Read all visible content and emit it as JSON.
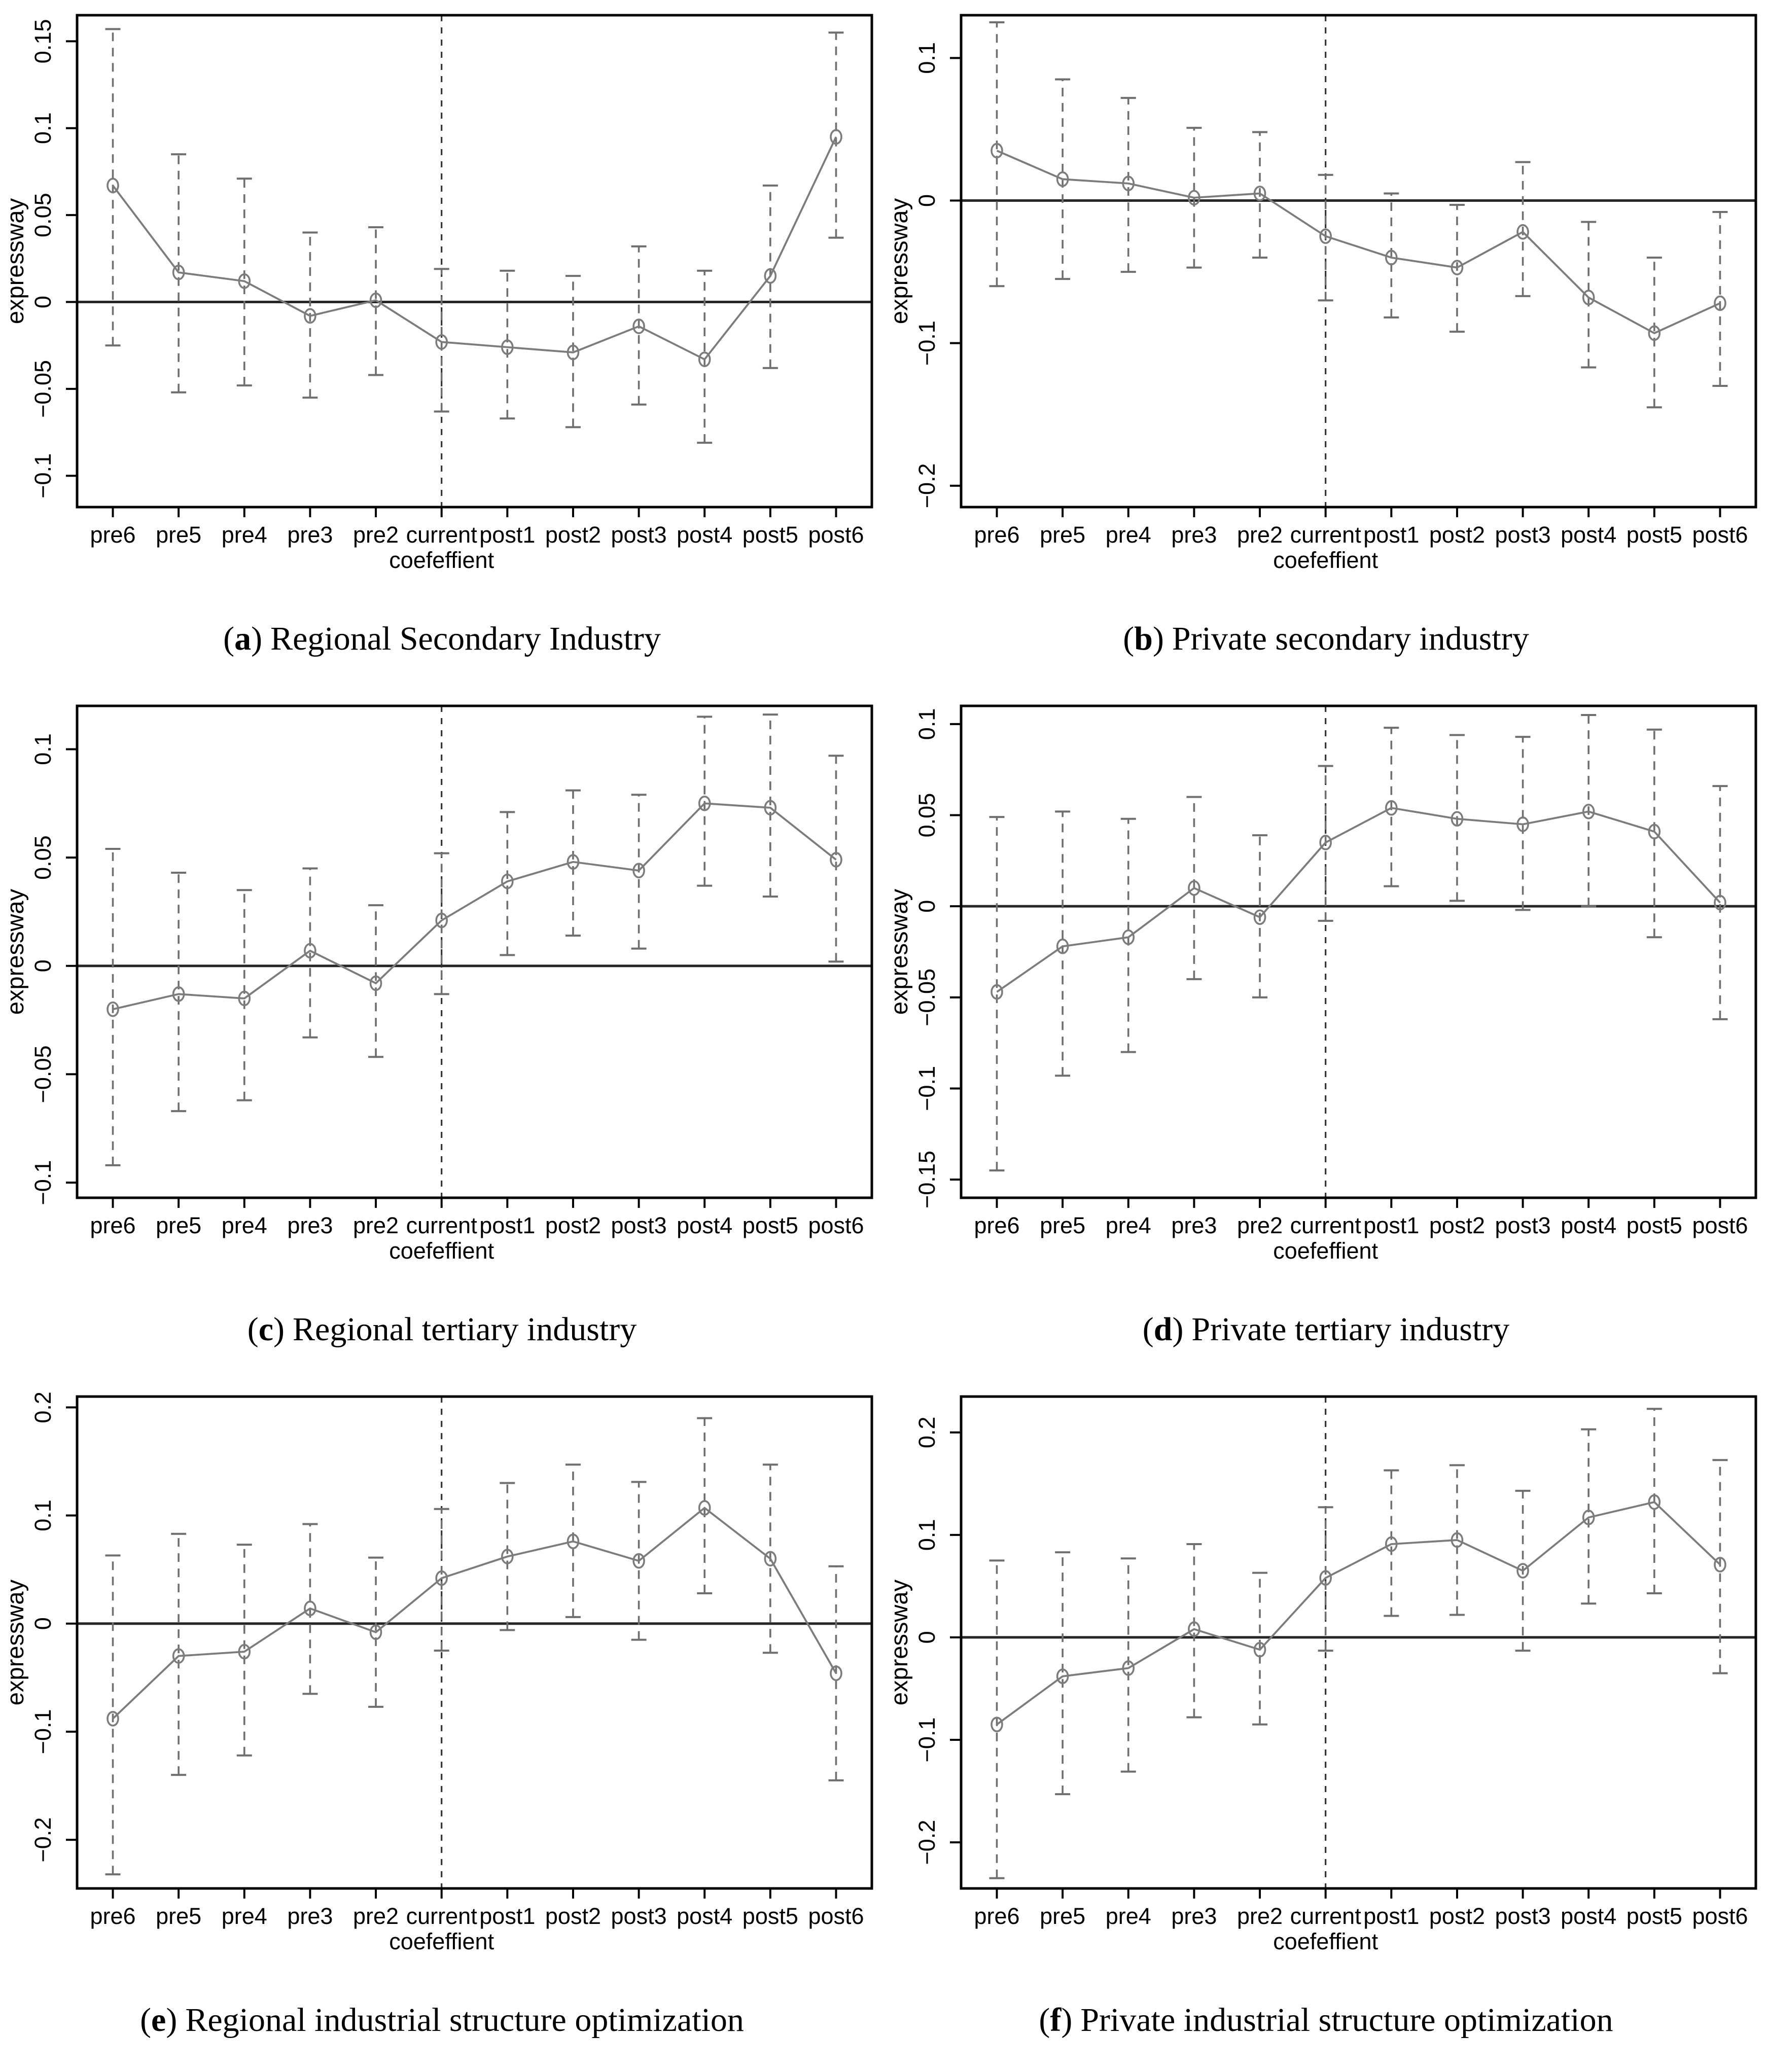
{
  "figure": {
    "description_labels": {
      "ylabel": "expressway",
      "xlabel": "coefeffient",
      "current_category": "current"
    }
  },
  "colors": {
    "series": "#7c7c7c",
    "error_bar": "#6f6f6f",
    "axis": "#000000",
    "zero_line": "#262626",
    "vline": "#333333",
    "background": "#ffffff"
  },
  "chart_data": [
    {
      "id": "a",
      "type": "line",
      "caption": {
        "open": "(",
        "letter": "a",
        "close": ")",
        "text": "Regional Secondary Industry"
      },
      "xlabel": "coefeffient",
      "ylabel": "expressway",
      "categories": [
        "pre6",
        "pre5",
        "pre4",
        "pre3",
        "pre2",
        "current",
        "post1",
        "post2",
        "post3",
        "post4",
        "post5",
        "post6"
      ],
      "vline_index": 5,
      "zero_line": true,
      "grid": false,
      "legend": null,
      "ylim": [
        -0.118,
        0.165
      ],
      "ytick_values": [
        -0.1,
        -0.05,
        0,
        0.05,
        0.1,
        0.15
      ],
      "ytick_labels": [
        "−0.1",
        "−0.05",
        "0",
        "0.05",
        "0.1",
        "0.15"
      ],
      "series": [
        {
          "name": "coefficient",
          "values": [
            0.067,
            0.017,
            0.012,
            -0.008,
            0.001,
            -0.023,
            -0.026,
            -0.029,
            -0.014,
            -0.033,
            0.015,
            0.095
          ]
        },
        {
          "name": "ci_lower",
          "values": [
            -0.025,
            -0.052,
            -0.048,
            -0.055,
            -0.042,
            -0.063,
            -0.067,
            -0.072,
            -0.059,
            -0.081,
            -0.038,
            0.037
          ]
        },
        {
          "name": "ci_upper",
          "values": [
            0.157,
            0.085,
            0.071,
            0.04,
            0.043,
            0.019,
            0.018,
            0.015,
            0.032,
            0.018,
            0.067,
            0.155
          ]
        }
      ]
    },
    {
      "id": "b",
      "type": "line",
      "caption": {
        "open": "(",
        "letter": "b",
        "close": ")",
        "text": "Private secondary industry"
      },
      "xlabel": "coefeffient",
      "ylabel": "expressway",
      "categories": [
        "pre6",
        "pre5",
        "pre4",
        "pre3",
        "pre2",
        "current",
        "post1",
        "post2",
        "post3",
        "post4",
        "post5",
        "post6"
      ],
      "vline_index": 5,
      "zero_line": true,
      "grid": false,
      "legend": null,
      "ylim": [
        -0.215,
        0.13
      ],
      "ytick_values": [
        -0.2,
        -0.1,
        0,
        0.1
      ],
      "ytick_labels": [
        "−0.2",
        "−0.1",
        "0",
        "0.1"
      ],
      "series": [
        {
          "name": "coefficient",
          "values": [
            0.035,
            0.015,
            0.012,
            0.002,
            0.005,
            -0.025,
            -0.04,
            -0.047,
            -0.022,
            -0.068,
            -0.093,
            -0.072
          ]
        },
        {
          "name": "ci_lower",
          "values": [
            -0.06,
            -0.055,
            -0.05,
            -0.047,
            -0.04,
            -0.07,
            -0.082,
            -0.092,
            -0.067,
            -0.117,
            -0.145,
            -0.13
          ]
        },
        {
          "name": "ci_upper",
          "values": [
            0.125,
            0.085,
            0.072,
            0.051,
            0.048,
            0.018,
            0.005,
            -0.003,
            0.027,
            -0.015,
            -0.04,
            -0.008
          ]
        }
      ]
    },
    {
      "id": "c",
      "type": "line",
      "caption": {
        "open": "(",
        "letter": "c",
        "close": ")",
        "text": "Regional tertiary industry"
      },
      "xlabel": "coefeffient",
      "ylabel": "expressway",
      "categories": [
        "pre6",
        "pre5",
        "pre4",
        "pre3",
        "pre2",
        "current",
        "post1",
        "post2",
        "post3",
        "post4",
        "post5",
        "post6"
      ],
      "vline_index": 5,
      "zero_line": true,
      "grid": false,
      "legend": null,
      "ylim": [
        -0.107,
        0.12
      ],
      "ytick_values": [
        -0.1,
        -0.05,
        0,
        0.05,
        0.1
      ],
      "ytick_labels": [
        "−0.1",
        "−0.05",
        "0",
        "0.05",
        "0.1"
      ],
      "series": [
        {
          "name": "coefficient",
          "values": [
            -0.02,
            -0.013,
            -0.015,
            0.007,
            -0.008,
            0.021,
            0.039,
            0.048,
            0.044,
            0.075,
            0.073,
            0.049
          ]
        },
        {
          "name": "ci_lower",
          "values": [
            -0.092,
            -0.067,
            -0.062,
            -0.033,
            -0.042,
            -0.013,
            0.005,
            0.014,
            0.008,
            0.037,
            0.032,
            0.002
          ]
        },
        {
          "name": "ci_upper",
          "values": [
            0.054,
            0.043,
            0.035,
            0.045,
            0.028,
            0.052,
            0.071,
            0.081,
            0.079,
            0.115,
            0.116,
            0.097
          ]
        }
      ]
    },
    {
      "id": "d",
      "type": "line",
      "caption": {
        "open": "(",
        "letter": "d",
        "close": ")",
        "text": "Private tertiary industry"
      },
      "xlabel": "coefeffient",
      "ylabel": "expressway",
      "categories": [
        "pre6",
        "pre5",
        "pre4",
        "pre3",
        "pre2",
        "current",
        "post1",
        "post2",
        "post3",
        "post4",
        "post5",
        "post6"
      ],
      "vline_index": 5,
      "zero_line": true,
      "grid": false,
      "legend": null,
      "ylim": [
        -0.16,
        0.11
      ],
      "ytick_values": [
        -0.15,
        -0.1,
        -0.05,
        0,
        0.05,
        0.1
      ],
      "ytick_labels": [
        "−0.15",
        "−0.1",
        "−0.05",
        "0",
        "0.05",
        "0.1"
      ],
      "series": [
        {
          "name": "coefficient",
          "values": [
            -0.047,
            -0.022,
            -0.017,
            0.01,
            -0.006,
            0.035,
            0.054,
            0.048,
            0.045,
            0.052,
            0.041,
            0.002
          ]
        },
        {
          "name": "ci_lower",
          "values": [
            -0.145,
            -0.093,
            -0.08,
            -0.04,
            -0.05,
            -0.008,
            0.011,
            0.003,
            -0.002,
            0.0,
            -0.017,
            -0.062
          ]
        },
        {
          "name": "ci_upper",
          "values": [
            0.049,
            0.052,
            0.048,
            0.06,
            0.039,
            0.077,
            0.098,
            0.094,
            0.093,
            0.105,
            0.097,
            0.066
          ]
        }
      ]
    },
    {
      "id": "e",
      "type": "line",
      "caption": {
        "open": "(",
        "letter": "e",
        "close": ")",
        "text": "Regional industrial structure optimization"
      },
      "xlabel": "coefeffient",
      "ylabel": "expressway",
      "categories": [
        "pre6",
        "pre5",
        "pre4",
        "pre3",
        "pre2",
        "current",
        "post1",
        "post2",
        "post3",
        "post4",
        "post5",
        "post6"
      ],
      "vline_index": 5,
      "zero_line": true,
      "grid": false,
      "legend": null,
      "ylim": [
        -0.245,
        0.21
      ],
      "ytick_values": [
        -0.2,
        -0.1,
        0,
        0.1,
        0.2
      ],
      "ytick_labels": [
        "−0.2",
        "−0.1",
        "0",
        "0.1",
        "0.2"
      ],
      "series": [
        {
          "name": "coefficient",
          "values": [
            -0.088,
            -0.03,
            -0.026,
            0.014,
            -0.008,
            0.042,
            0.062,
            0.076,
            0.058,
            0.107,
            0.06,
            -0.046
          ]
        },
        {
          "name": "ci_lower",
          "values": [
            -0.232,
            -0.14,
            -0.122,
            -0.065,
            -0.077,
            -0.025,
            -0.006,
            0.006,
            -0.015,
            0.028,
            -0.027,
            -0.145
          ]
        },
        {
          "name": "ci_upper",
          "values": [
            0.063,
            0.083,
            0.073,
            0.092,
            0.061,
            0.106,
            0.13,
            0.147,
            0.131,
            0.19,
            0.147,
            0.053
          ]
        }
      ]
    },
    {
      "id": "f",
      "type": "line",
      "caption": {
        "open": "(",
        "letter": "f",
        "close": ")",
        "text": "Private industrial structure optimization"
      },
      "xlabel": "coefeffient",
      "ylabel": "expressway",
      "categories": [
        "pre6",
        "pre5",
        "pre4",
        "pre3",
        "pre2",
        "current",
        "post1",
        "post2",
        "post3",
        "post4",
        "post5",
        "post6"
      ],
      "vline_index": 5,
      "zero_line": true,
      "grid": false,
      "legend": null,
      "ylim": [
        -0.245,
        0.235
      ],
      "ytick_values": [
        -0.2,
        -0.1,
        0,
        0.1,
        0.2
      ],
      "ytick_labels": [
        "−0.2",
        "−0.1",
        "0",
        "0.1",
        "0.2"
      ],
      "series": [
        {
          "name": "coefficient",
          "values": [
            -0.085,
            -0.038,
            -0.03,
            0.008,
            -0.012,
            0.058,
            0.091,
            0.095,
            0.065,
            0.117,
            0.132,
            0.071
          ]
        },
        {
          "name": "ci_lower",
          "values": [
            -0.235,
            -0.153,
            -0.131,
            -0.078,
            -0.085,
            -0.013,
            0.021,
            0.022,
            -0.013,
            0.033,
            0.043,
            -0.035
          ]
        },
        {
          "name": "ci_upper",
          "values": [
            0.075,
            0.083,
            0.077,
            0.091,
            0.063,
            0.127,
            0.163,
            0.168,
            0.143,
            0.203,
            0.223,
            0.173
          ]
        }
      ]
    }
  ]
}
